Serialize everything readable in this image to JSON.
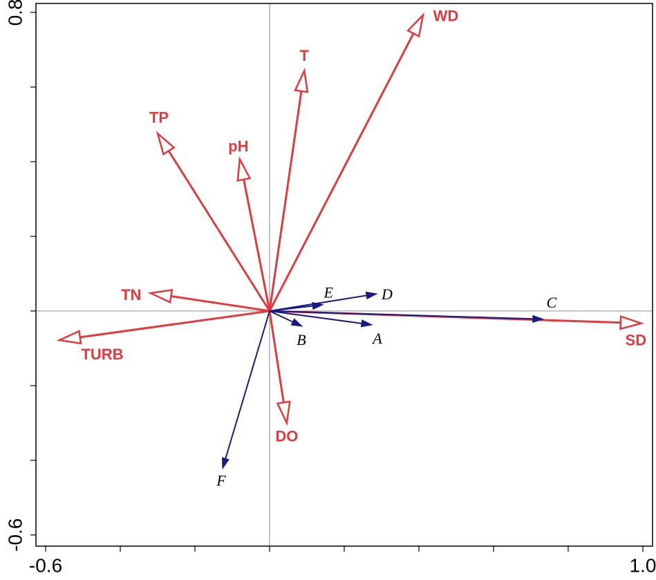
{
  "chart_data": {
    "type": "biplot",
    "xlim": [
      -0.626,
      1.026
    ],
    "ylim": [
      -0.63,
      0.824
    ],
    "xticks": [
      -0.6,
      {
        "value": 1.0,
        "label": "1.0"
      }
    ],
    "xticks_minor": [
      -0.4,
      -0.2,
      0,
      0.2,
      0.4,
      0.6,
      0.8
    ],
    "yticks": [
      -0.6,
      0.8
    ],
    "yticks_minor": [
      -0.4,
      -0.2,
      0,
      0.2,
      0.4,
      0.6
    ],
    "origin_lines": true,
    "groups": [
      {
        "color": "#e03a3e",
        "head": "open",
        "vectors": [
          {
            "label": "WD",
            "x": 0.411,
            "y": 0.793
          },
          {
            "label": "T",
            "x": 0.093,
            "y": 0.644
          },
          {
            "label": "TP",
            "x": -0.3,
            "y": 0.476
          },
          {
            "label": "pH",
            "x": -0.08,
            "y": 0.407
          },
          {
            "label": "TN",
            "x": -0.319,
            "y": 0.048
          },
          {
            "label": "TURB",
            "x": -0.563,
            "y": -0.078
          },
          {
            "label": "SD",
            "x": 0.996,
            "y": -0.033
          },
          {
            "label": "DO",
            "x": 0.046,
            "y": -0.3
          }
        ]
      },
      {
        "color": "#1a1a80",
        "head": "filled",
        "vectors": [
          {
            "label": "A",
            "x": 0.274,
            "y": -0.037
          },
          {
            "label": "B",
            "x": 0.087,
            "y": -0.041
          },
          {
            "label": "C",
            "x": 0.733,
            "y": -0.022
          },
          {
            "label": "D",
            "x": 0.287,
            "y": 0.046
          },
          {
            "label": "E",
            "x": 0.143,
            "y": 0.017
          },
          {
            "label": "F",
            "x": -0.126,
            "y": -0.422
          }
        ]
      }
    ]
  }
}
